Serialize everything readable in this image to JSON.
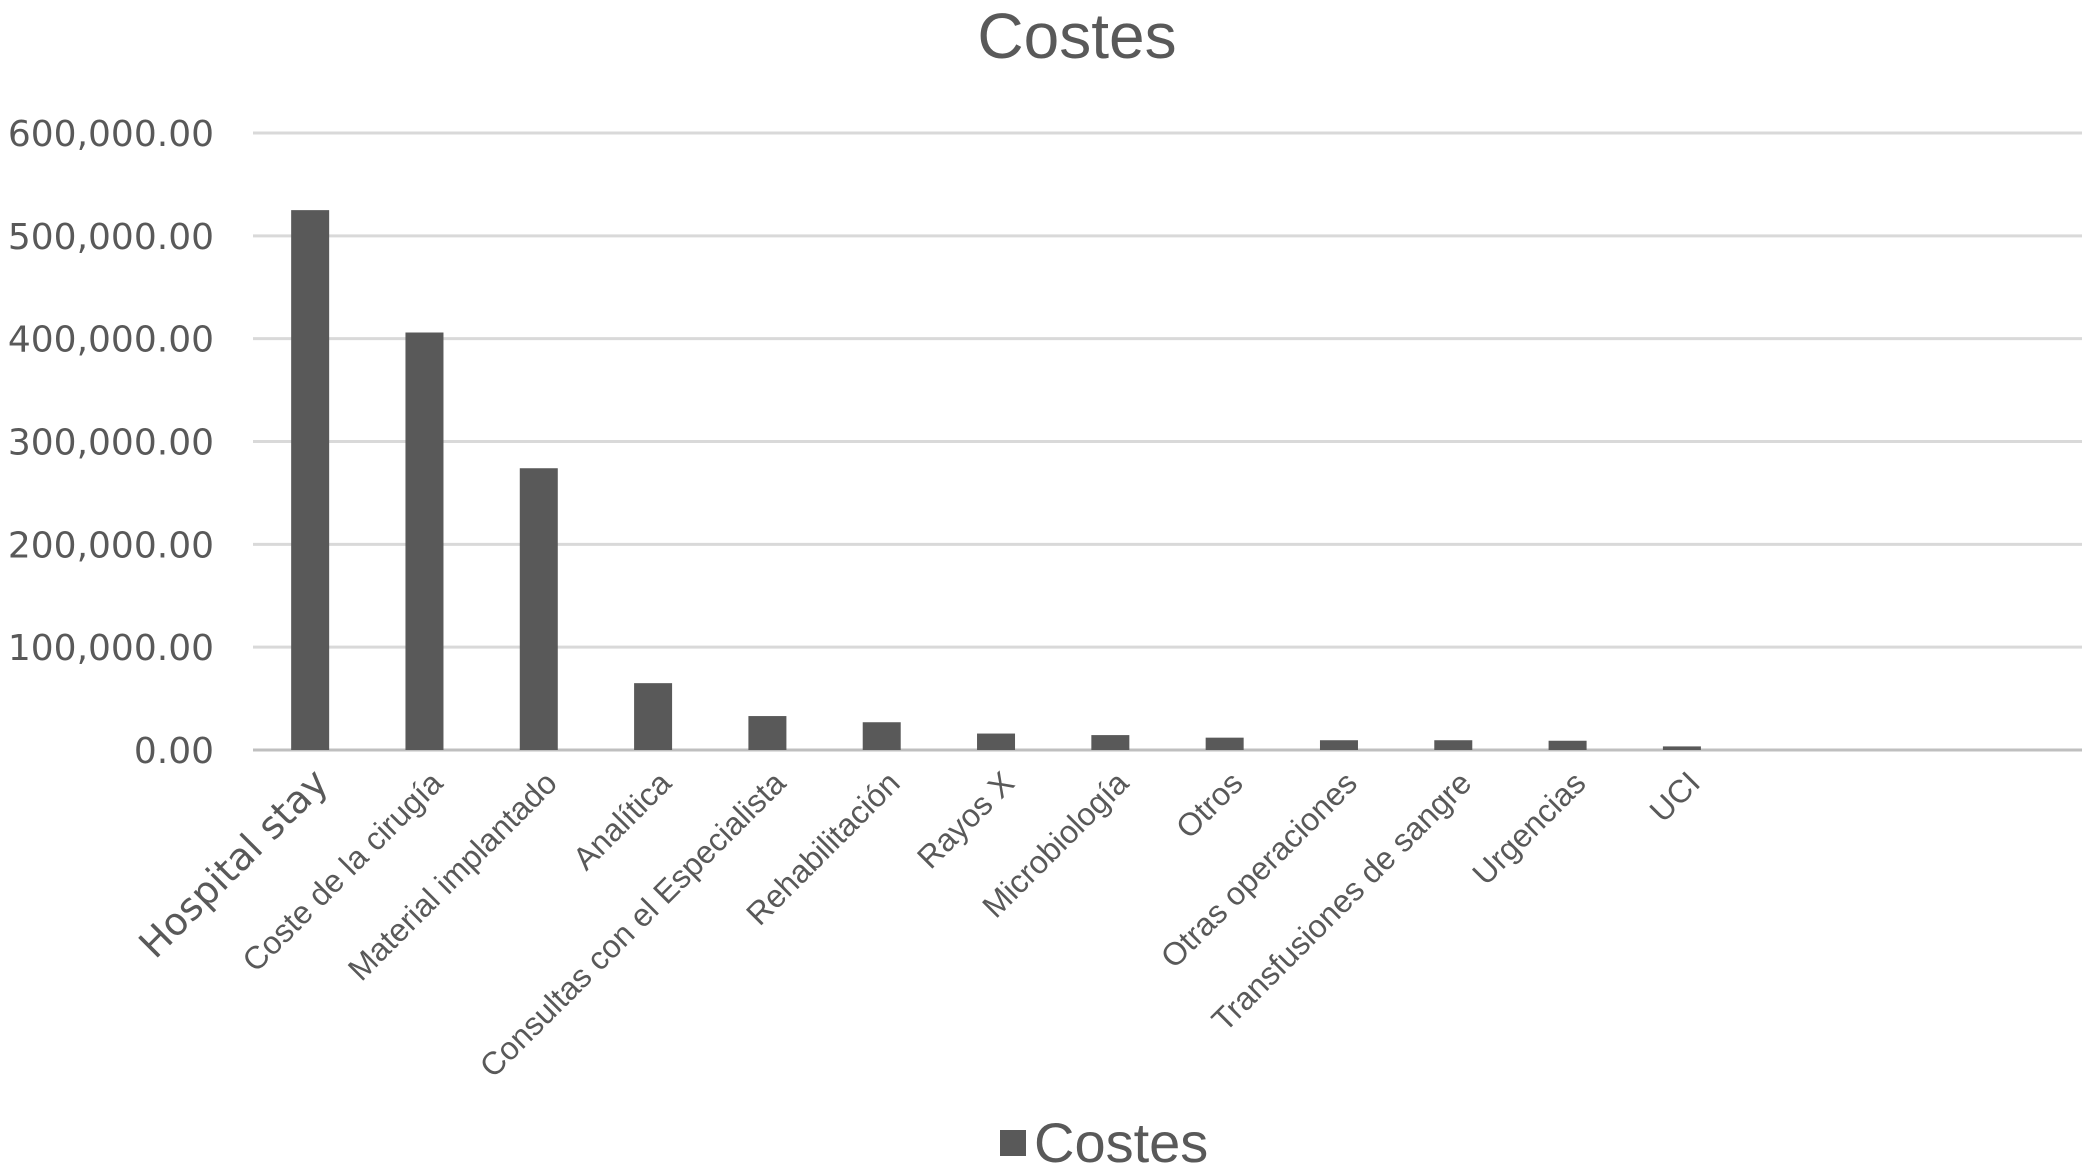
{
  "chart_data": {
    "type": "bar",
    "title": "Costes",
    "xlabel": "",
    "ylabel": "",
    "categories": [
      "Hospital stay",
      "Coste de la cirugía",
      "Material implantado",
      "Analítica",
      "Consultas con el Especialista",
      "Rehabilitación",
      "Rayos X",
      "Microbiología",
      "Otros",
      "Otras operaciones",
      "Transfusiones de sangre",
      "Urgencias",
      "UCI"
    ],
    "series": [
      {
        "name": "Costes",
        "values": [
          525000,
          406000,
          274000,
          65000,
          33000,
          27000,
          16000,
          14500,
          12000,
          9500,
          9500,
          9000,
          3500
        ],
        "color": "#595959"
      }
    ],
    "y_ticks": [
      "0.00",
      "100,000.00",
      "200,000.00",
      "300,000.00",
      "400,000.00",
      "500,000.00",
      "600,000.00"
    ],
    "ylim": [
      0,
      600000
    ],
    "grid": true,
    "legend": "bottom-center"
  }
}
